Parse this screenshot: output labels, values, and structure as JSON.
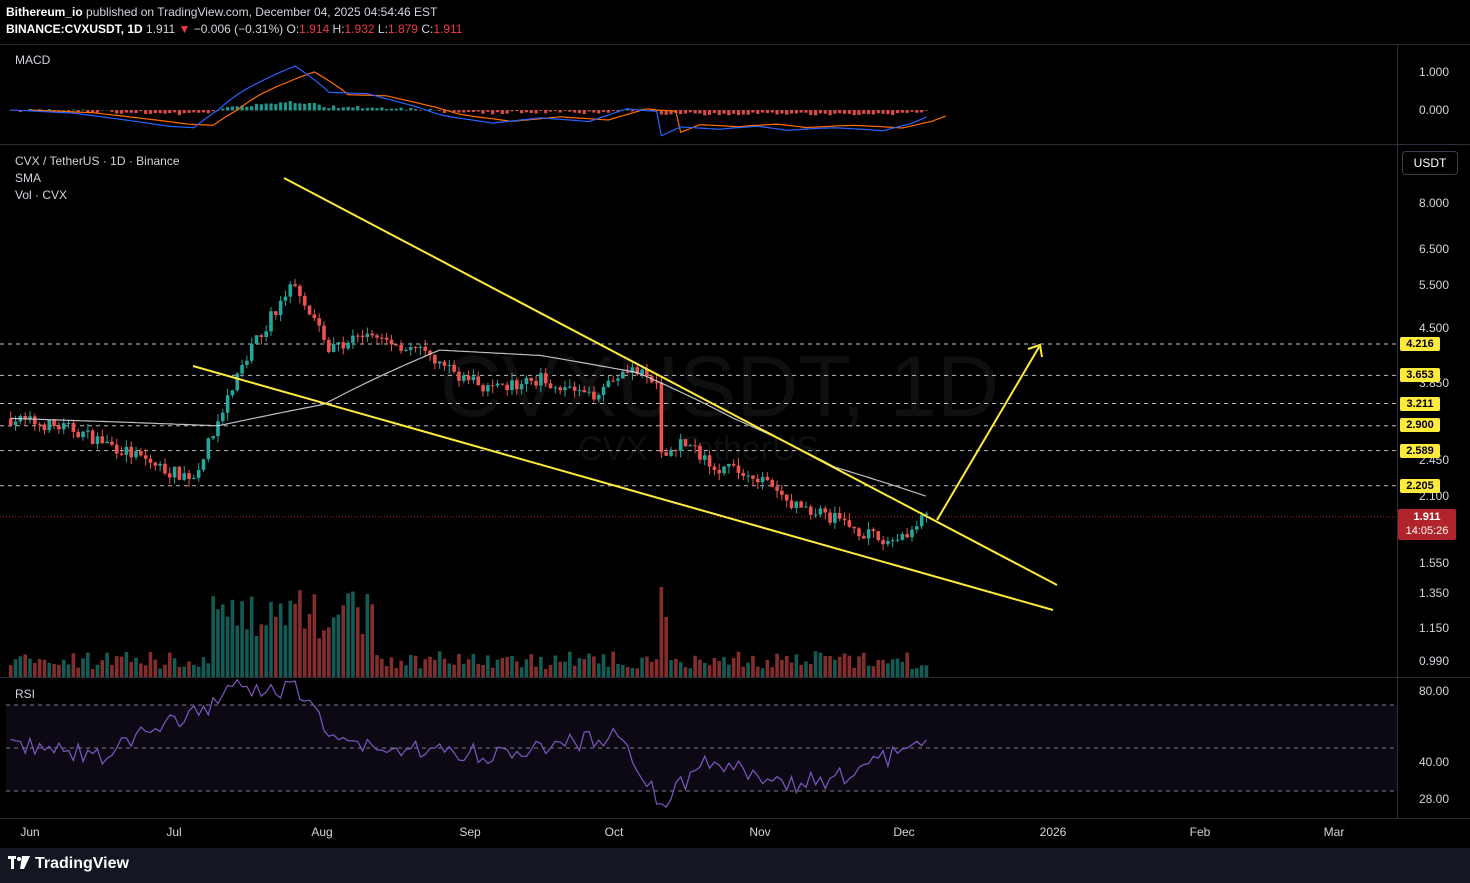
{
  "publish_line": {
    "author": "Bithereum_io",
    "text": "published on TradingView.com, December 04, 2025 04:54:46 EST"
  },
  "ohlc_line": {
    "symbol": "BINANCE:CVXUSDT, 1D",
    "last": "1.911",
    "arrow": "▼",
    "change": "−0.006 (−0.31%)",
    "o_label": "O:",
    "o_val": "1.914",
    "h_label": "H:",
    "h_val": "1.932",
    "l_label": "L:",
    "l_val": "1.879",
    "c_label": "C:",
    "c_val": "1.911"
  },
  "macd_pane": {
    "label": "MACD",
    "axis": [
      "1.000",
      "0.000"
    ]
  },
  "main_pane": {
    "title": "CVX / TetherUS · 1D · Binance",
    "sma_label": "SMA",
    "vol_label": "Vol · CVX",
    "currency_button": "USDT",
    "watermark_symbol": "CVXUSDT, 1D",
    "watermark_name": "CVX · TetherUS",
    "axis": [
      "8.000",
      "6.500",
      "5.500",
      "4.500",
      "3.850",
      "2.450",
      "2.100",
      "1.550",
      "1.350",
      "1.150",
      "0.990"
    ],
    "level_badges": [
      "4.216",
      "3.653",
      "3.211",
      "2.900",
      "2.589",
      "2.205"
    ],
    "price_badge": {
      "price": "1.911",
      "countdown": "14:05:26"
    }
  },
  "rsi_pane": {
    "label": "RSI",
    "axis": [
      "80.00",
      "40.00",
      "28.00"
    ]
  },
  "time_axis": [
    "Jun",
    "Jul",
    "Aug",
    "Sep",
    "Oct",
    "Nov",
    "Dec",
    "2026",
    "Feb",
    "Mar"
  ],
  "footer": {
    "brand": "TradingView"
  },
  "colors": {
    "background": "#000000",
    "up": "#26a69a",
    "down": "#ef5350",
    "trendline": "#ffeb3b",
    "sma": "#d1d4dc",
    "macd_line": "#2962ff",
    "signal_line": "#ff6d00",
    "rsi_line": "#7e57c2",
    "price_badge": "#b2242b"
  },
  "chart_data": {
    "type": "candlestick",
    "symbol": "CVXUSDT",
    "timeframe": "1D",
    "scale": "log",
    "horizontal_levels": [
      4.216,
      3.653,
      3.211,
      2.9,
      2.589,
      2.205
    ],
    "last_price": 1.911,
    "close_series_approx": {
      "dates": [
        "2025-05-28",
        "2025-06-10",
        "2025-06-20",
        "2025-06-30",
        "2025-07-05",
        "2025-07-10",
        "2025-07-15",
        "2025-07-20",
        "2025-07-26",
        "2025-08-02",
        "2025-08-10",
        "2025-08-20",
        "2025-08-28",
        "2025-09-05",
        "2025-09-15",
        "2025-09-25",
        "2025-10-03",
        "2025-10-09",
        "2025-10-10",
        "2025-10-14",
        "2025-10-22",
        "2025-10-30",
        "2025-11-05",
        "2025-11-12",
        "2025-11-20",
        "2025-11-25",
        "2025-12-01",
        "2025-12-04"
      ],
      "values": [
        3.0,
        2.85,
        2.6,
        2.35,
        2.3,
        2.9,
        3.8,
        4.6,
        5.6,
        4.1,
        4.4,
        4.1,
        3.7,
        3.4,
        3.6,
        3.3,
        3.8,
        3.5,
        2.5,
        2.7,
        2.4,
        2.3,
        2.05,
        1.95,
        1.8,
        1.7,
        1.8,
        1.911
      ]
    },
    "sma_series_approx": {
      "dates": [
        "2025-05-28",
        "2025-06-20",
        "2025-07-10",
        "2025-08-01",
        "2025-08-25",
        "2025-09-15",
        "2025-10-05",
        "2025-10-25",
        "2025-11-15",
        "2025-12-04"
      ],
      "values": [
        3.0,
        2.95,
        2.9,
        3.2,
        4.1,
        4.0,
        3.7,
        3.0,
        2.4,
        2.1
      ]
    },
    "volume_max_approx_date": "2025-10-10",
    "rsi_series_approx": {
      "dates": [
        "2025-05-28",
        "2025-06-15",
        "2025-07-10",
        "2025-07-14",
        "2025-07-26",
        "2025-08-05",
        "2025-09-05",
        "2025-10-01",
        "2025-10-10",
        "2025-10-20",
        "2025-11-05",
        "2025-11-20",
        "2025-12-04"
      ],
      "values": [
        52,
        46,
        72,
        78,
        77,
        52,
        47,
        56,
        25,
        45,
        33,
        38,
        56
      ]
    },
    "annotations": [
      "descending wedge upper trendline",
      "descending wedge lower trendline",
      "breakout arrow toward 4.216"
    ]
  }
}
